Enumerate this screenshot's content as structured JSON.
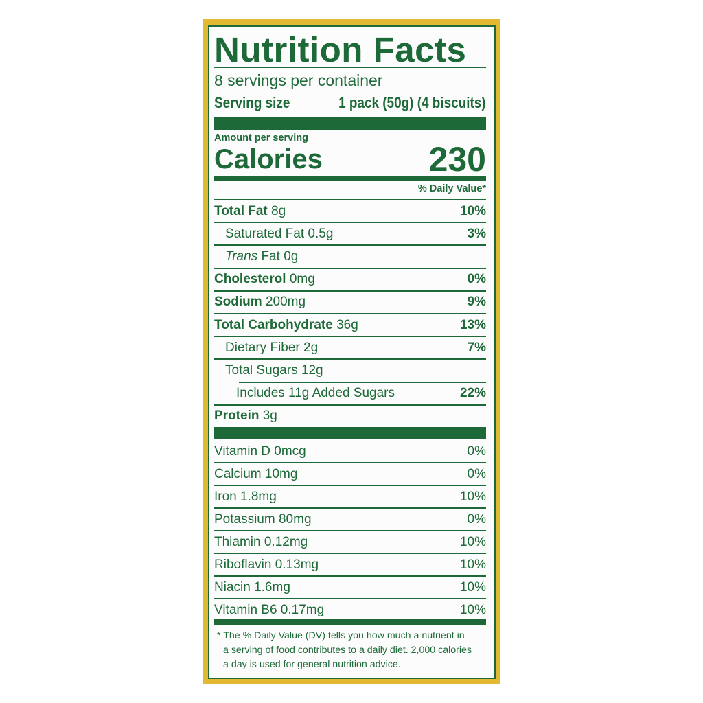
{
  "colors": {
    "frame": "#e3b833",
    "text": "#1d6a38",
    "background": "#fdfcfc"
  },
  "title": "Nutrition Facts",
  "servings_per_container": "8 servings per container",
  "serving_size": {
    "label": "Serving size",
    "value": "1 pack (50g) (4 biscuits)"
  },
  "amount_per_serving": "Amount per serving",
  "calories": {
    "label": "Calories",
    "value": "230"
  },
  "daily_value_header": "% Daily Value*",
  "nutrients": [
    {
      "name": "Total Fat",
      "amount": "8g",
      "dv": "10%"
    },
    {
      "name": "Saturated Fat",
      "amount": "0.5g",
      "dv": "3%"
    },
    {
      "name": "Trans",
      "name_suffix": "Fat",
      "amount": "0g",
      "dv": ""
    },
    {
      "name": "Cholesterol",
      "amount": "0mg",
      "dv": "0%"
    },
    {
      "name": "Sodium",
      "amount": "200mg",
      "dv": "9%"
    },
    {
      "name": "Total Carbohydrate",
      "amount": "36g",
      "dv": "13%"
    },
    {
      "name": "Dietary Fiber",
      "amount": "2g",
      "dv": "7%"
    },
    {
      "name": "Total Sugars",
      "amount": "12g",
      "dv": ""
    },
    {
      "name": "Includes 11g Added Sugars",
      "amount": "",
      "dv": "22%"
    },
    {
      "name": "Protein",
      "amount": "3g",
      "dv": ""
    }
  ],
  "vitamins": [
    {
      "label": "Vitamin D 0mcg",
      "dv": "0%"
    },
    {
      "label": "Calcium 10mg",
      "dv": "0%"
    },
    {
      "label": "Iron 1.8mg",
      "dv": "10%"
    },
    {
      "label": "Potassium 80mg",
      "dv": "0%"
    },
    {
      "label": "Thiamin 0.12mg",
      "dv": "10%"
    },
    {
      "label": "Riboflavin 0.13mg",
      "dv": "10%"
    },
    {
      "label": "Niacin 1.6mg",
      "dv": "10%"
    },
    {
      "label": "Vitamin B6 0.17mg",
      "dv": "10%"
    }
  ],
  "footnote": {
    "line1": "* The % Daily Value (DV) tells you how much a nutrient in",
    "line2": "a serving of food contributes to a daily diet. 2,000 calories",
    "line3": "a day is used for general nutrition advice."
  }
}
